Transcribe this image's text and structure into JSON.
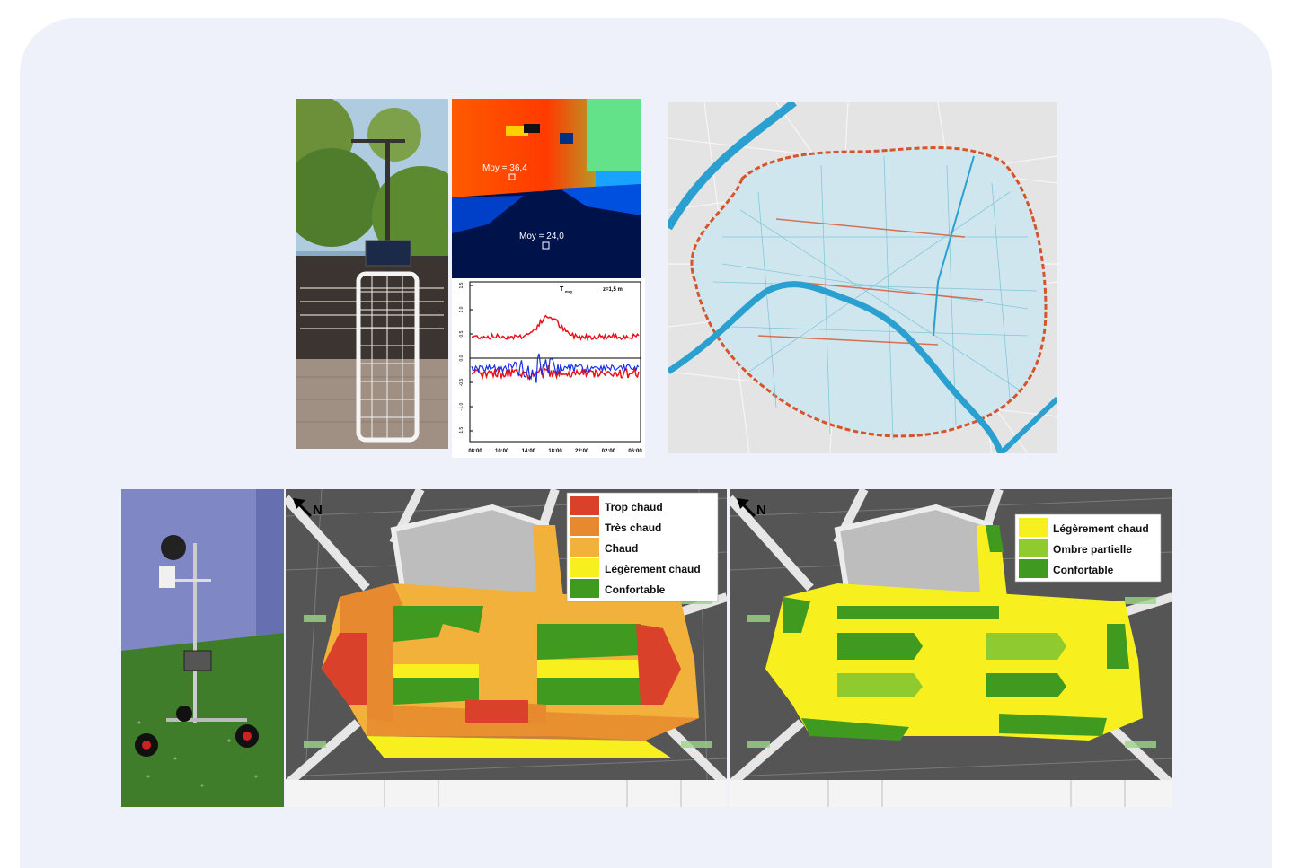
{
  "thermal": {
    "label_hot": "Moy = 36,4",
    "label_cool": "Moy = 24,0"
  },
  "timeseries_chart": {
    "title": "T",
    "title_sub": "moy",
    "height_label": "z=1,5 m",
    "x_ticks": [
      "08:00",
      "10:00",
      "14:00",
      "18:00",
      "22:00",
      "02:00",
      "06:00"
    ],
    "y_ticks": [
      "1.5",
      "1.0",
      "0.5",
      "0.0",
      "-0.5",
      "-1.0",
      "-1.5"
    ],
    "colors": {
      "series_a": "#e8121b",
      "series_b": "#1d2fe0"
    }
  },
  "map_left": {
    "north_label": "N",
    "legend": [
      {
        "label": "Trop chaud",
        "color": "#d9412b"
      },
      {
        "label": "Très chaud",
        "color": "#e6892f"
      },
      {
        "label": "Chaud",
        "color": "#f2b13a"
      },
      {
        "label": "Légèrement chaud",
        "color": "#f7ef1e"
      },
      {
        "label": "Confortable",
        "color": "#3f9a1f"
      }
    ]
  },
  "map_right": {
    "north_label": "N",
    "legend": [
      {
        "label": "Légèrement chaud",
        "color": "#f7ef1e"
      },
      {
        "label": "Ombre partielle",
        "color": "#8fca2e"
      },
      {
        "label": "Confortable",
        "color": "#3f9a1f"
      }
    ]
  }
}
